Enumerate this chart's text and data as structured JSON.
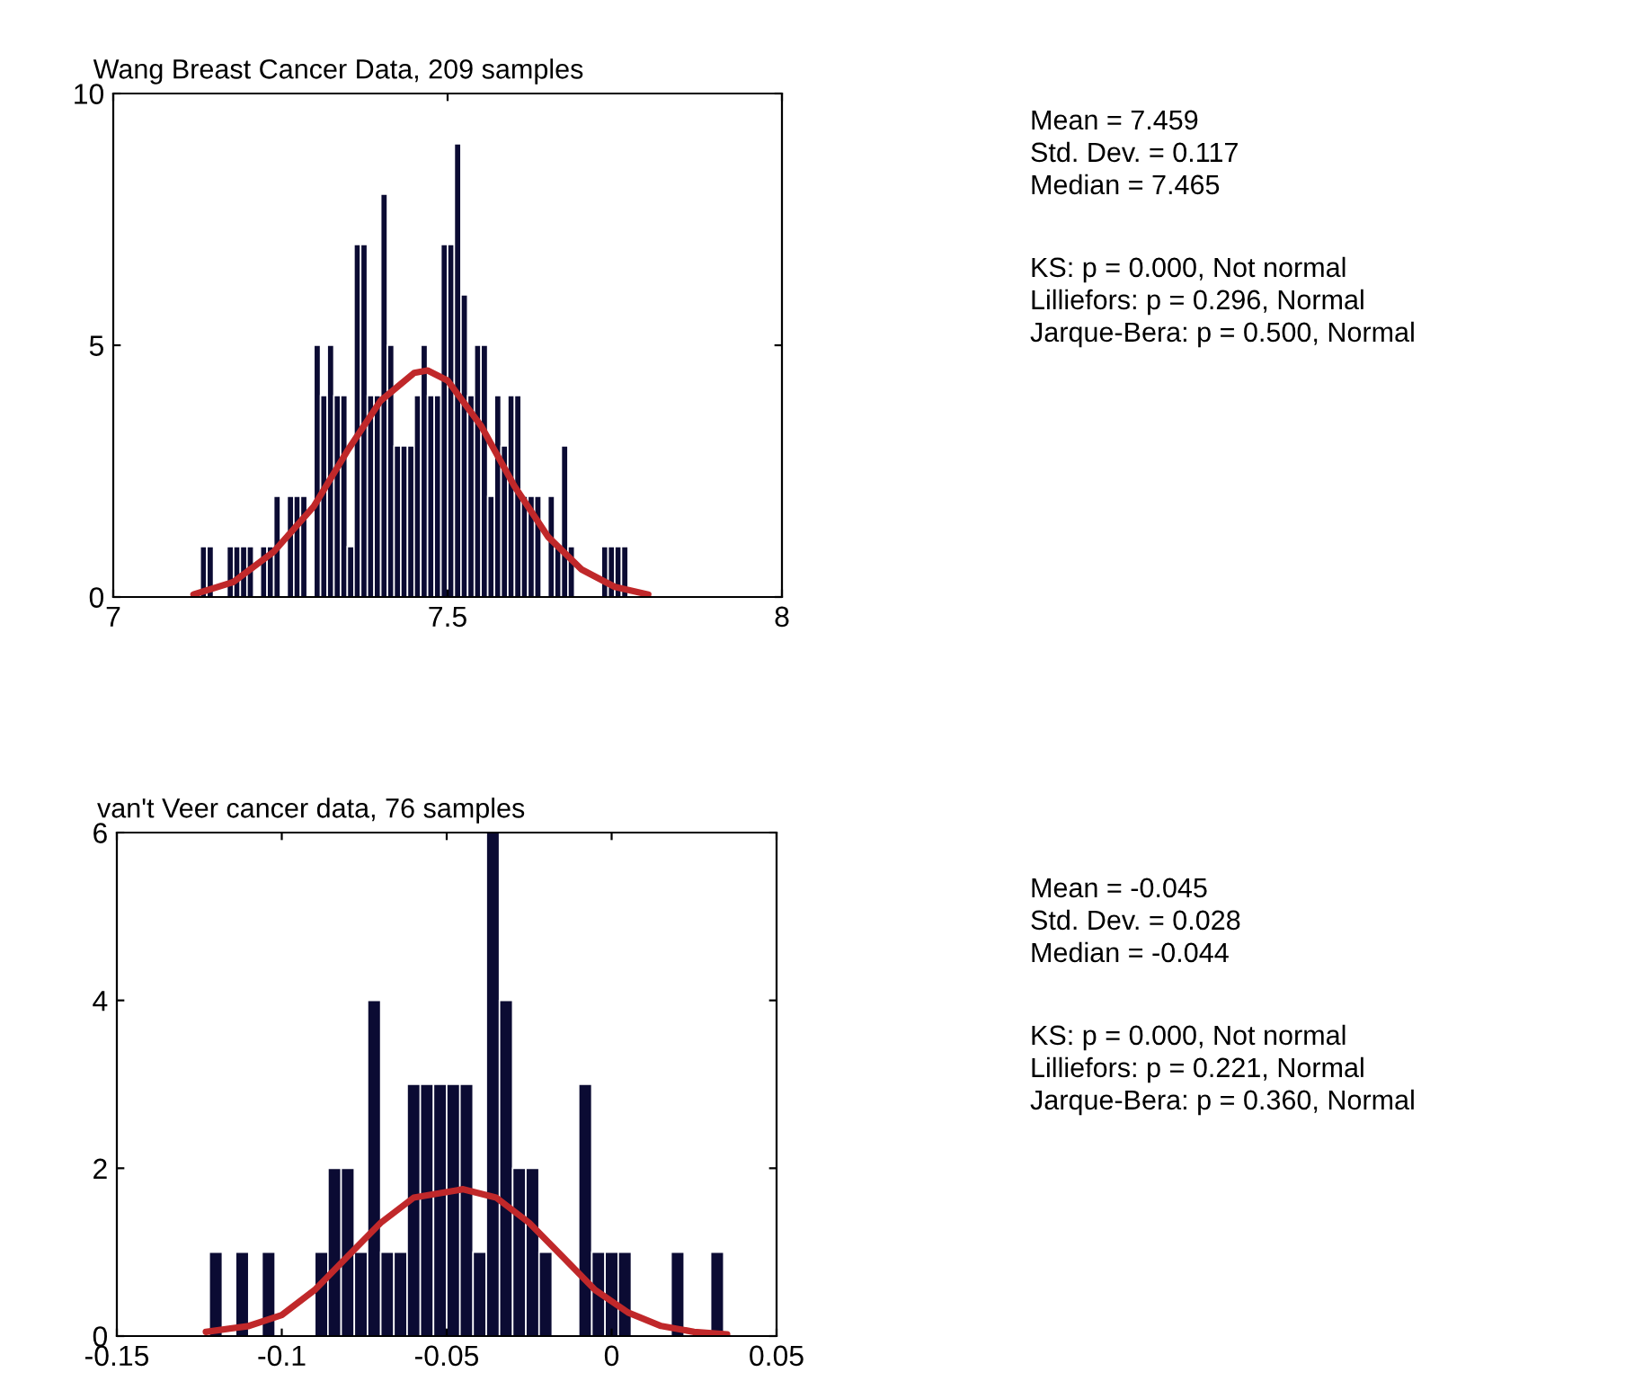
{
  "chart_data": [
    {
      "type": "histogram",
      "title": "Wang Breast Cancer Data, 209 samples",
      "color": "#0b0b33",
      "bins": [
        7.13,
        7.14,
        7.15,
        7.16,
        7.17,
        7.18,
        7.19,
        7.2,
        7.21,
        7.22,
        7.23,
        7.24,
        7.25,
        7.26,
        7.27,
        7.28,
        7.29,
        7.3,
        7.31,
        7.32,
        7.33,
        7.34,
        7.35,
        7.36,
        7.37,
        7.38,
        7.39,
        7.4,
        7.41,
        7.42,
        7.43,
        7.44,
        7.45,
        7.46,
        7.47,
        7.48,
        7.49,
        7.5,
        7.51,
        7.52,
        7.53,
        7.54,
        7.55,
        7.56,
        7.57,
        7.58,
        7.59,
        7.6,
        7.61,
        7.62,
        7.63,
        7.64,
        7.65,
        7.66,
        7.67,
        7.68,
        7.69,
        7.7,
        7.71,
        7.72,
        7.73,
        7.74,
        7.75,
        7.76,
        7.77
      ],
      "values": [
        1,
        1,
        0,
        0,
        1,
        1,
        1,
        1,
        0,
        1,
        1,
        2,
        0,
        2,
        2,
        2,
        0,
        5,
        4,
        5,
        4,
        4,
        1,
        7,
        7,
        4,
        4,
        8,
        5,
        3,
        3,
        3,
        4,
        5,
        4,
        4,
        7,
        7,
        9,
        6,
        4,
        5,
        5,
        2,
        4,
        3,
        4,
        4,
        2,
        2,
        2,
        0,
        2,
        1,
        3,
        1,
        0,
        0,
        0,
        0,
        1,
        1,
        1,
        1
      ],
      "series": [
        {
          "type": "line",
          "color": "#c0282a",
          "x": [
            7.12,
            7.18,
            7.24,
            7.3,
            7.35,
            7.4,
            7.45,
            7.47,
            7.5,
            7.55,
            7.6,
            7.65,
            7.7,
            7.75,
            7.8
          ],
          "values": [
            0.05,
            0.3,
            0.9,
            1.8,
            2.9,
            3.9,
            4.45,
            4.5,
            4.3,
            3.4,
            2.2,
            1.2,
            0.55,
            0.2,
            0.05
          ]
        }
      ],
      "xlim": [
        7,
        8
      ],
      "xticks": [
        7,
        7.5,
        8
      ],
      "ylim": [
        0,
        10
      ],
      "yticks": [
        0,
        5,
        10
      ],
      "grid": false,
      "annotations": [
        "Mean = 7.459",
        "Std. Dev. = 0.117",
        "Median = 7.465",
        "KS: p = 0.000, Not normal",
        "Lilliefors: p = 0.296, Normal",
        "Jarque-Bera: p = 0.500, Normal"
      ]
    },
    {
      "type": "histogram",
      "title": "van't Veer cancer data, 76 samples",
      "color": "#0b0b33",
      "bins": [
        -0.122,
        -0.118,
        -0.114,
        -0.11,
        -0.106,
        -0.102,
        -0.098,
        -0.094,
        -0.09,
        -0.086,
        -0.082,
        -0.078,
        -0.074,
        -0.07,
        -0.066,
        -0.062,
        -0.058,
        -0.054,
        -0.05,
        -0.046,
        -0.042,
        -0.038,
        -0.034,
        -0.03,
        -0.026,
        -0.022,
        -0.018,
        -0.014,
        -0.01,
        -0.006,
        -0.002,
        0.002,
        0.006,
        0.01,
        0.014,
        0.018,
        0.022,
        0.026,
        0.03,
        0.034,
        0.038
      ],
      "values": [
        1,
        0,
        1,
        0,
        1,
        0,
        0,
        0,
        1,
        2,
        2,
        1,
        4,
        1,
        1,
        3,
        3,
        3,
        3,
        3,
        1,
        6,
        4,
        2,
        2,
        1,
        0,
        0,
        3,
        1,
        1,
        1,
        0,
        0,
        0,
        1,
        0,
        0,
        1,
        0
      ],
      "series": [
        {
          "type": "line",
          "color": "#c0282a",
          "x": [
            -0.123,
            -0.11,
            -0.1,
            -0.09,
            -0.08,
            -0.07,
            -0.06,
            -0.045,
            -0.035,
            -0.025,
            -0.015,
            -0.005,
            0.005,
            0.015,
            0.025,
            0.035
          ],
          "values": [
            0.05,
            0.12,
            0.25,
            0.55,
            0.95,
            1.35,
            1.65,
            1.75,
            1.65,
            1.35,
            0.95,
            0.55,
            0.28,
            0.12,
            0.05,
            0.02
          ]
        }
      ],
      "xlim": [
        -0.15,
        0.05
      ],
      "xticks": [
        -0.15,
        -0.1,
        -0.05,
        0,
        0.05
      ],
      "ylim": [
        0,
        6
      ],
      "yticks": [
        0,
        2,
        4,
        6
      ],
      "grid": false,
      "annotations": [
        "Mean = -0.045",
        "Std. Dev. = 0.028",
        "Median = -0.044",
        "KS: p = 0.000, Not normal",
        "Lilliefors: p = 0.221, Normal",
        "Jarque-Bera: p = 0.360, Normal"
      ]
    }
  ]
}
